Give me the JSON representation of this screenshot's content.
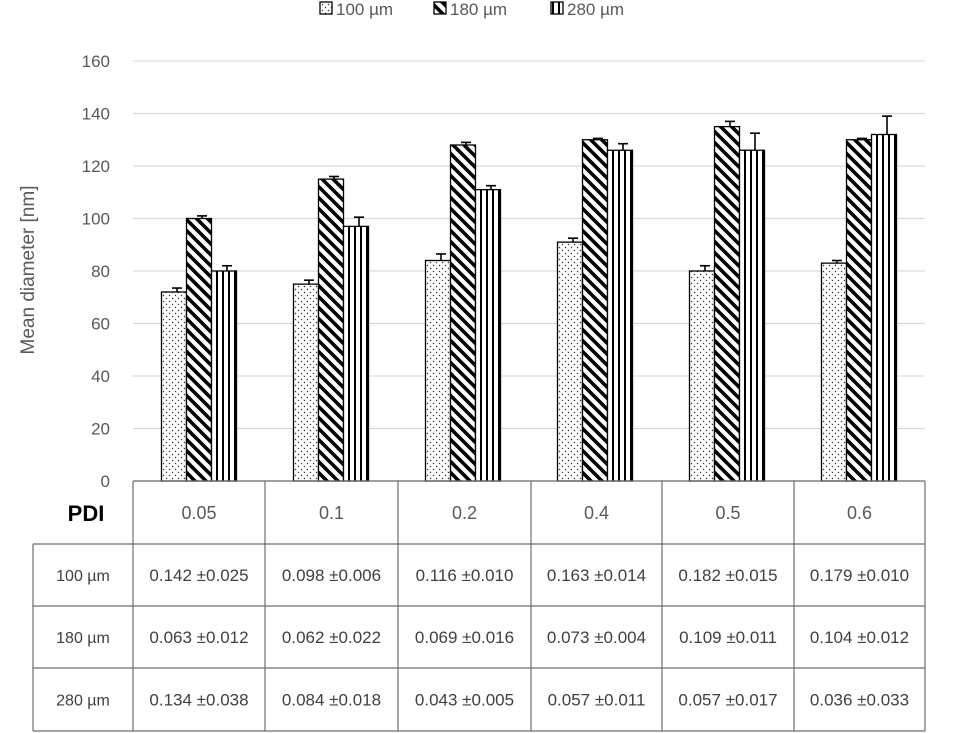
{
  "chart_data": {
    "type": "bar",
    "ylabel": "Mean diameter [nm]",
    "ylim": [
      0,
      160
    ],
    "yticks": [
      0,
      20,
      40,
      60,
      80,
      100,
      120,
      140,
      160
    ],
    "grid": true,
    "legend_position": "top",
    "table_header": "PDI",
    "categories": [
      "0.05",
      "0.1",
      "0.2",
      "0.4",
      "0.5",
      "0.6"
    ],
    "series": [
      {
        "name": "100 µm",
        "pattern": "dots",
        "values": [
          72,
          75,
          84,
          91,
          80,
          83
        ],
        "errors": [
          1.5,
          1.5,
          2.5,
          1.5,
          2,
          1
        ],
        "pdi": [
          "0.142 ±0.025",
          "0.098 ±0.006",
          "0.116 ±0.010",
          "0.163 ±0.014",
          "0.182 ±0.015",
          "0.179 ±0.010"
        ]
      },
      {
        "name": "180 µm",
        "pattern": "diagonal",
        "values": [
          100,
          115,
          128,
          130,
          135,
          130
        ],
        "errors": [
          1,
          1,
          1,
          0.5,
          2,
          0.5
        ],
        "pdi": [
          "0.063 ±0.012",
          "0.062 ±0.022",
          "0.069 ±0.016",
          "0.073 ±0.004",
          "0.109 ±0.011",
          "0.104 ±0.012"
        ]
      },
      {
        "name": "280 µm",
        "pattern": "vertical",
        "values": [
          80,
          97,
          111,
          126,
          126,
          132
        ],
        "errors": [
          2,
          3.5,
          1.5,
          2.5,
          6.5,
          7
        ],
        "pdi": [
          "0.134 ±0.038",
          "0.084 ±0.018",
          "0.043 ±0.005",
          "0.057 ±0.011",
          "0.057 ±0.017",
          "0.036 ±0.033"
        ]
      }
    ]
  }
}
